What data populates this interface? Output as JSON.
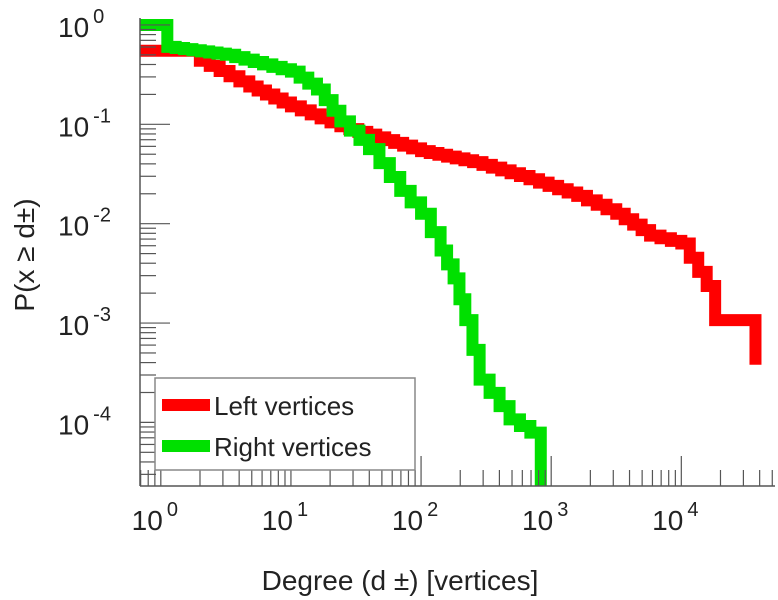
{
  "chart_data": {
    "type": "line",
    "title": "",
    "xlabel": "Degree (d ±) [vertices]",
    "ylabel": "P(x ≥ d±)",
    "xscale": "log",
    "yscale": "log",
    "xlim_log10": [
      -0.16,
      4.72
    ],
    "ylim_log10": [
      -4.64,
      0.07
    ],
    "x_ticks": [
      {
        "base": "10",
        "exp": "0",
        "v": 0
      },
      {
        "base": "10",
        "exp": "1",
        "v": 1
      },
      {
        "base": "10",
        "exp": "2",
        "v": 2
      },
      {
        "base": "10",
        "exp": "3",
        "v": 3
      },
      {
        "base": "10",
        "exp": "4",
        "v": 4
      }
    ],
    "y_ticks": [
      {
        "base": "10",
        "exp": "0",
        "v": 0
      },
      {
        "base": "10",
        "exp": "-1",
        "v": -1
      },
      {
        "base": "10",
        "exp": "-2",
        "v": -2
      },
      {
        "base": "10",
        "exp": "-3",
        "v": -3
      },
      {
        "base": "10",
        "exp": "-4",
        "v": -4
      }
    ],
    "legend_position": "bottom-left",
    "series": [
      {
        "name": "Left vertices",
        "color": "#ff0000",
        "log10_points": [
          [
            -0.16,
            -0.26
          ],
          [
            0.3,
            -0.26
          ],
          [
            0.3,
            -0.36
          ],
          [
            0.68,
            -0.62
          ],
          [
            1.0,
            -0.82
          ],
          [
            1.38,
            -1.02
          ],
          [
            2.0,
            -1.27
          ],
          [
            2.4,
            -1.38
          ],
          [
            2.76,
            -1.52
          ],
          [
            3.2,
            -1.72
          ],
          [
            3.5,
            -1.9
          ],
          [
            3.76,
            -2.12
          ],
          [
            4.0,
            -2.2
          ],
          [
            4.26,
            -2.77
          ],
          [
            4.26,
            -2.97
          ],
          [
            4.57,
            -2.97
          ],
          [
            4.57,
            -3.42
          ]
        ]
      },
      {
        "name": "Right vertices",
        "color": "#00e000",
        "log10_points": [
          [
            -0.16,
            0
          ],
          [
            0.05,
            0
          ],
          [
            0.05,
            -0.22
          ],
          [
            0.5,
            -0.3
          ],
          [
            1.0,
            -0.47
          ],
          [
            1.2,
            -0.65
          ],
          [
            1.38,
            -0.97
          ],
          [
            1.6,
            -1.25
          ],
          [
            1.84,
            -1.67
          ],
          [
            2.0,
            -1.9
          ],
          [
            2.15,
            -2.27
          ],
          [
            2.25,
            -2.55
          ],
          [
            2.34,
            -2.97
          ],
          [
            2.45,
            -3.57
          ],
          [
            2.68,
            -3.97
          ],
          [
            2.92,
            -4.17
          ],
          [
            2.92,
            -4.64
          ]
        ]
      }
    ]
  }
}
